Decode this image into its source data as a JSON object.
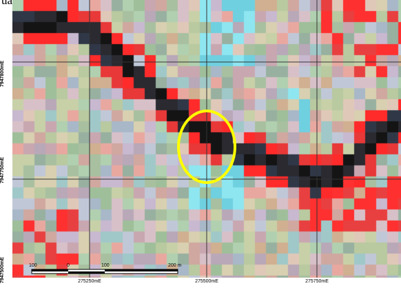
{
  "caption": "ual margent.",
  "map": {
    "grid": {
      "eastings": [
        "275250mE",
        "275500mE",
        "275750mE"
      ],
      "northings": [
        "7947800mE",
        "7947750mE",
        "7947500mE"
      ]
    },
    "highlight": {
      "shape": "ellipse",
      "color": "#ffff00"
    },
    "scale_bar": {
      "labels": [
        "100",
        "0",
        "100",
        "200 m"
      ]
    },
    "colors": {
      "channel": "#141414",
      "vegetation": "#ff2a2a",
      "water_cyan": "#8ee6f0",
      "background": "#c9d6b4",
      "grid_line": "#333333"
    }
  }
}
